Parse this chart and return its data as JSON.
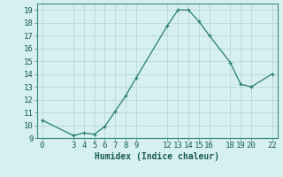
{
  "x": [
    0,
    3,
    4,
    5,
    6,
    7,
    8,
    9,
    12,
    13,
    14,
    15,
    16,
    18,
    19,
    20,
    22
  ],
  "y": [
    10.4,
    9.2,
    9.4,
    9.3,
    9.9,
    11.1,
    12.3,
    13.7,
    17.8,
    19.0,
    19.0,
    18.1,
    17.0,
    14.9,
    13.2,
    13.0,
    14.0
  ],
  "line_color": "#2a7d6f",
  "marker_color": "#2a7d6f",
  "bg_color": "#d6f0ef",
  "grid_color": "#b8d8d5",
  "xlabel": "Humidex (Indice chaleur)",
  "xlim": [
    -0.5,
    22.5
  ],
  "ylim": [
    9,
    19.5
  ],
  "xticks": [
    0,
    3,
    4,
    5,
    6,
    7,
    8,
    9,
    12,
    13,
    14,
    15,
    16,
    18,
    19,
    20,
    22
  ],
  "yticks": [
    9,
    10,
    11,
    12,
    13,
    14,
    15,
    16,
    17,
    18,
    19
  ],
  "xlabel_fontsize": 7,
  "tick_fontsize": 6.5
}
